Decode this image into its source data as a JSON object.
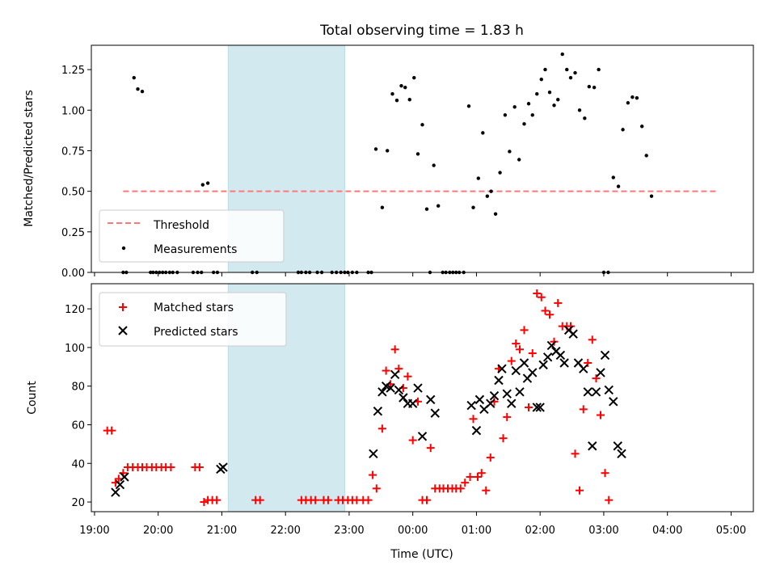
{
  "chart_data": [
    {
      "type": "scatter",
      "panel": "top",
      "title": "Total observing time = 1.83 h",
      "ylabel": "Matched/Predicted stars",
      "xlabel": "",
      "xlim": [
        -0.05,
        10.35
      ],
      "ylim": [
        0,
        1.4
      ],
      "yticks": [
        0.0,
        0.25,
        0.5,
        0.75,
        1.0,
        1.25
      ],
      "ytick_labels": [
        "0.00",
        "0.25",
        "0.50",
        "0.75",
        "1.00",
        "1.25"
      ],
      "shaded_region": [
        2.1,
        3.93
      ],
      "shaded_color": "#d3e9f0",
      "grid": false,
      "legend": {
        "placement": "lower-left"
      },
      "threshold": {
        "name": "Threshold",
        "y": 0.5,
        "x": [
          0.45,
          9.8
        ],
        "color": "#ff7777",
        "style": "dashed"
      },
      "series": [
        {
          "name": "Measurements",
          "marker": "dot",
          "color": "#000000",
          "points": [
            [
              0.45,
              0
            ],
            [
              0.5,
              0
            ],
            [
              0.62,
              1.2
            ],
            [
              0.68,
              1.13
            ],
            [
              0.75,
              1.115
            ],
            [
              0.88,
              0
            ],
            [
              0.92,
              0
            ],
            [
              0.97,
              0
            ],
            [
              1.02,
              0
            ],
            [
              1.07,
              0
            ],
            [
              1.12,
              0
            ],
            [
              1.18,
              0
            ],
            [
              1.23,
              0
            ],
            [
              1.3,
              0
            ],
            [
              1.55,
              0
            ],
            [
              1.62,
              0
            ],
            [
              1.68,
              0
            ],
            [
              1.7,
              0.54
            ],
            [
              1.78,
              0.55
            ],
            [
              1.87,
              0
            ],
            [
              1.93,
              0
            ],
            [
              2.48,
              0
            ],
            [
              2.55,
              0
            ],
            [
              3.2,
              0
            ],
            [
              3.25,
              0
            ],
            [
              3.32,
              0
            ],
            [
              3.38,
              0
            ],
            [
              3.5,
              0
            ],
            [
              3.57,
              0
            ],
            [
              3.73,
              0
            ],
            [
              3.8,
              0
            ],
            [
              3.87,
              0
            ],
            [
              3.93,
              0
            ],
            [
              3.98,
              0
            ],
            [
              4.05,
              0
            ],
            [
              4.12,
              0
            ],
            [
              4.3,
              0
            ],
            [
              4.35,
              0
            ],
            [
              4.42,
              0.76
            ],
            [
              4.52,
              0.4
            ],
            [
              4.6,
              0.75
            ],
            [
              4.68,
              1.1
            ],
            [
              4.75,
              1.06
            ],
            [
              4.82,
              1.15
            ],
            [
              4.88,
              1.14
            ],
            [
              4.95,
              1.065
            ],
            [
              5.02,
              1.2
            ],
            [
              5.08,
              0.73
            ],
            [
              5.15,
              0.91
            ],
            [
              5.22,
              0.39
            ],
            [
              5.27,
              0
            ],
            [
              5.33,
              0.66
            ],
            [
              5.4,
              0.41
            ],
            [
              5.47,
              0
            ],
            [
              5.52,
              0
            ],
            [
              5.58,
              0
            ],
            [
              5.63,
              0
            ],
            [
              5.68,
              0
            ],
            [
              5.73,
              0
            ],
            [
              5.8,
              0
            ],
            [
              5.88,
              1.025
            ],
            [
              5.95,
              0.4
            ],
            [
              6.03,
              0.58
            ],
            [
              6.1,
              0.86
            ],
            [
              6.17,
              0.47
            ],
            [
              6.23,
              0.5
            ],
            [
              6.3,
              0.36
            ],
            [
              6.37,
              0.615
            ],
            [
              6.45,
              0.97
            ],
            [
              6.52,
              0.745
            ],
            [
              6.6,
              1.02
            ],
            [
              6.67,
              0.695
            ],
            [
              6.75,
              0.915
            ],
            [
              6.82,
              1.04
            ],
            [
              6.88,
              0.97
            ],
            [
              6.95,
              1.1
            ],
            [
              7.02,
              1.19
            ],
            [
              7.08,
              1.25
            ],
            [
              7.15,
              1.11
            ],
            [
              7.22,
              1.03
            ],
            [
              7.28,
              1.065
            ],
            [
              7.35,
              1.345
            ],
            [
              7.42,
              1.25
            ],
            [
              7.48,
              1.2
            ],
            [
              7.55,
              1.23
            ],
            [
              7.62,
              1.0
            ],
            [
              7.7,
              0.95
            ],
            [
              7.77,
              1.145
            ],
            [
              7.85,
              1.14
            ],
            [
              7.92,
              1.25
            ],
            [
              8.0,
              0
            ],
            [
              8.07,
              0
            ],
            [
              8.15,
              0.585
            ],
            [
              8.23,
              0.53
            ],
            [
              8.3,
              0.88
            ],
            [
              8.38,
              1.045
            ],
            [
              8.45,
              1.08
            ],
            [
              8.52,
              1.075
            ],
            [
              8.6,
              0.9
            ],
            [
              8.67,
              0.72
            ],
            [
              8.75,
              0.47
            ]
          ]
        }
      ]
    },
    {
      "type": "scatter",
      "panel": "bottom",
      "xlabel": "Time (UTC)",
      "ylabel": "Count",
      "xlim": [
        -0.05,
        10.35
      ],
      "ylim": [
        15,
        133
      ],
      "yticks": [
        20,
        40,
        60,
        80,
        100,
        120
      ],
      "xtick_labels": [
        "19:00",
        "20:00",
        "21:00",
        "22:00",
        "23:00",
        "00:00",
        "01:00",
        "02:00",
        "03:00",
        "04:00",
        "05:00"
      ],
      "shaded_region": [
        2.1,
        3.93
      ],
      "shaded_color": "#d3e9f0",
      "grid": false,
      "legend": {
        "placement": "top-left"
      },
      "series": [
        {
          "name": "Matched stars",
          "marker": "plus",
          "color": "#ff0000",
          "points": [
            [
              0.2,
              57
            ],
            [
              0.27,
              57
            ],
            [
              0.33,
              30
            ],
            [
              0.38,
              32
            ],
            [
              0.45,
              35
            ],
            [
              0.52,
              38
            ],
            [
              0.6,
              38
            ],
            [
              0.68,
              38
            ],
            [
              0.75,
              38
            ],
            [
              0.82,
              38
            ],
            [
              0.9,
              38
            ],
            [
              0.97,
              38
            ],
            [
              1.05,
              38
            ],
            [
              1.12,
              38
            ],
            [
              1.2,
              38
            ],
            [
              1.58,
              38
            ],
            [
              1.65,
              38
            ],
            [
              1.72,
              20
            ],
            [
              1.78,
              21
            ],
            [
              1.85,
              21
            ],
            [
              1.92,
              21
            ],
            [
              2.53,
              21
            ],
            [
              2.6,
              21
            ],
            [
              3.25,
              21
            ],
            [
              3.32,
              21
            ],
            [
              3.4,
              21
            ],
            [
              3.47,
              21
            ],
            [
              3.6,
              21
            ],
            [
              3.67,
              21
            ],
            [
              3.83,
              21
            ],
            [
              3.9,
              21
            ],
            [
              3.98,
              21
            ],
            [
              4.05,
              21
            ],
            [
              4.12,
              21
            ],
            [
              4.22,
              21
            ],
            [
              4.3,
              21
            ],
            [
              4.37,
              34
            ],
            [
              4.43,
              27
            ],
            [
              4.52,
              58
            ],
            [
              4.58,
              88
            ],
            [
              4.65,
              81
            ],
            [
              4.72,
              99
            ],
            [
              4.78,
              89
            ],
            [
              4.85,
              79
            ],
            [
              4.92,
              85
            ],
            [
              5.0,
              52
            ],
            [
              5.08,
              72
            ],
            [
              5.15,
              21
            ],
            [
              5.22,
              21
            ],
            [
              5.28,
              48
            ],
            [
              5.35,
              27
            ],
            [
              5.42,
              27
            ],
            [
              5.48,
              27
            ],
            [
              5.55,
              27
            ],
            [
              5.62,
              27
            ],
            [
              5.68,
              27
            ],
            [
              5.75,
              27
            ],
            [
              5.82,
              30
            ],
            [
              5.9,
              33
            ],
            [
              5.95,
              63
            ],
            [
              6.02,
              33
            ],
            [
              6.08,
              35
            ],
            [
              6.15,
              26
            ],
            [
              6.22,
              43
            ],
            [
              6.28,
              72
            ],
            [
              6.35,
              89
            ],
            [
              6.42,
              53
            ],
            [
              6.48,
              64
            ],
            [
              6.55,
              93
            ],
            [
              6.62,
              102
            ],
            [
              6.68,
              99
            ],
            [
              6.75,
              109
            ],
            [
              6.82,
              69
            ],
            [
              6.88,
              97
            ],
            [
              6.95,
              128
            ],
            [
              7.02,
              126
            ],
            [
              7.08,
              119
            ],
            [
              7.15,
              117
            ],
            [
              7.22,
              103
            ],
            [
              7.28,
              123
            ],
            [
              7.35,
              111
            ],
            [
              7.42,
              111
            ],
            [
              7.48,
              111
            ],
            [
              7.55,
              45
            ],
            [
              7.62,
              26
            ],
            [
              7.68,
              68
            ],
            [
              7.75,
              92
            ],
            [
              7.82,
              104
            ],
            [
              7.88,
              84
            ],
            [
              7.95,
              65
            ],
            [
              8.02,
              35
            ],
            [
              8.08,
              21
            ]
          ]
        },
        {
          "name": "Predicted stars",
          "marker": "x",
          "color": "#000000",
          "points": [
            [
              0.33,
              25
            ],
            [
              0.4,
              29
            ],
            [
              0.47,
              33
            ],
            [
              1.98,
              37
            ],
            [
              2.02,
              38
            ],
            [
              4.38,
              45
            ],
            [
              4.45,
              67
            ],
            [
              4.52,
              77
            ],
            [
              4.58,
              80
            ],
            [
              4.65,
              79
            ],
            [
              4.72,
              86
            ],
            [
              4.78,
              78
            ],
            [
              4.85,
              74
            ],
            [
              4.92,
              71
            ],
            [
              5.0,
              71
            ],
            [
              5.08,
              79
            ],
            [
              5.15,
              54
            ],
            [
              5.28,
              73
            ],
            [
              5.35,
              66
            ],
            [
              5.92,
              70
            ],
            [
              6.0,
              57
            ],
            [
              6.05,
              73
            ],
            [
              6.12,
              68
            ],
            [
              6.22,
              71
            ],
            [
              6.28,
              75
            ],
            [
              6.35,
              83
            ],
            [
              6.4,
              89
            ],
            [
              6.48,
              76
            ],
            [
              6.55,
              71
            ],
            [
              6.62,
              88
            ],
            [
              6.68,
              77
            ],
            [
              6.75,
              92
            ],
            [
              6.8,
              84
            ],
            [
              6.88,
              87
            ],
            [
              6.95,
              69
            ],
            [
              7.0,
              69
            ],
            [
              7.05,
              91
            ],
            [
              7.12,
              95
            ],
            [
              7.18,
              101
            ],
            [
              7.25,
              98
            ],
            [
              7.32,
              96
            ],
            [
              7.38,
              92
            ],
            [
              7.45,
              109
            ],
            [
              7.52,
              107
            ],
            [
              7.6,
              92
            ],
            [
              7.68,
              89
            ],
            [
              7.75,
              77
            ],
            [
              7.82,
              49
            ],
            [
              7.88,
              77
            ],
            [
              7.95,
              87
            ],
            [
              8.02,
              96
            ],
            [
              8.08,
              78
            ],
            [
              8.15,
              72
            ],
            [
              8.22,
              49
            ],
            [
              8.28,
              45
            ]
          ]
        }
      ]
    }
  ]
}
